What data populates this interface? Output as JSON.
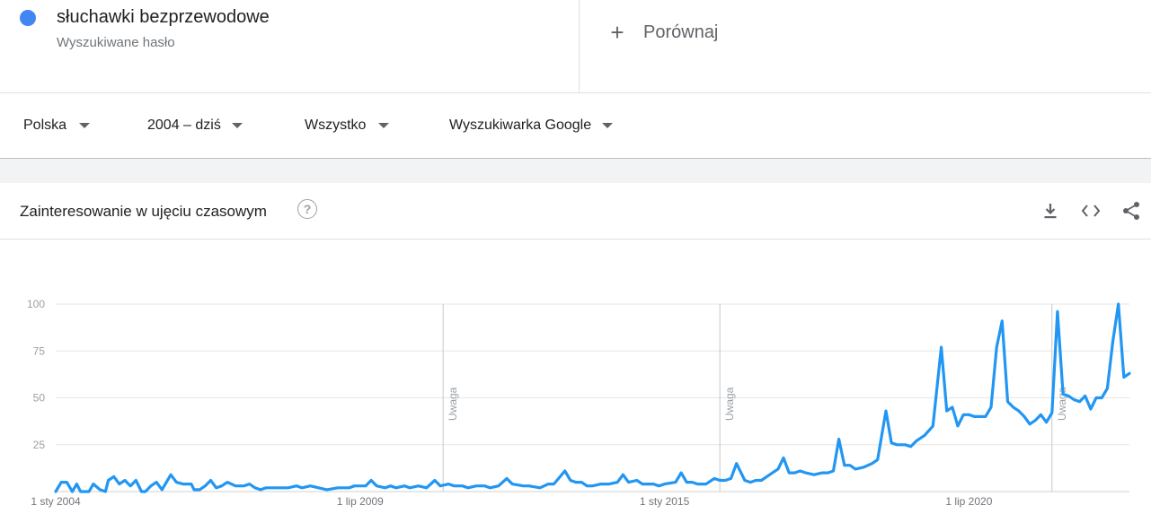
{
  "term": {
    "name": "słuchawki bezprzewodowe",
    "type": "Wyszukiwane hasło",
    "color": "#4285f4"
  },
  "compare": {
    "label": "Porównaj",
    "icon": "plus-icon"
  },
  "filters": [
    {
      "label": "Polska"
    },
    {
      "label": "2004 – dziś"
    },
    {
      "label": "Wszystko"
    },
    {
      "label": "Wyszukiwarka Google"
    }
  ],
  "card": {
    "title": "Zainteresowanie w ujęciu czasowym",
    "help_icon": "help-icon",
    "help_glyph": "?",
    "actions": [
      "download-icon",
      "embed-icon",
      "share-icon"
    ]
  },
  "chart_data": {
    "type": "line",
    "title": "",
    "xlabel": "",
    "ylabel": "",
    "ylim": [
      0,
      100
    ],
    "y_ticks": [
      100,
      75,
      50,
      25
    ],
    "x_ticks": [
      {
        "label": "1 sty 2004",
        "t": 2004.0
      },
      {
        "label": "1 lip 2009",
        "t": 2009.5
      },
      {
        "label": "1 sty 2015",
        "t": 2015.0
      },
      {
        "label": "1 lip 2020",
        "t": 2020.5
      }
    ],
    "xlim": [
      2004.0,
      2023.4
    ],
    "annotations": [
      {
        "label": "Uwaga",
        "t": 2011.0
      },
      {
        "label": "Uwaga",
        "t": 2016.0
      },
      {
        "label": "Uwaga",
        "t": 2022.0
      }
    ],
    "series": [
      {
        "color": "#2196f3",
        "points": [
          [
            2004.0,
            0
          ],
          [
            2004.1,
            5
          ],
          [
            2004.2,
            5
          ],
          [
            2004.3,
            0
          ],
          [
            2004.38,
            4
          ],
          [
            2004.45,
            0
          ],
          [
            2004.6,
            0
          ],
          [
            2004.68,
            4
          ],
          [
            2004.8,
            1
          ],
          [
            2004.9,
            0
          ],
          [
            2004.95,
            6
          ],
          [
            2005.05,
            8
          ],
          [
            2005.15,
            4
          ],
          [
            2005.25,
            6
          ],
          [
            2005.35,
            3
          ],
          [
            2005.45,
            6
          ],
          [
            2005.55,
            0
          ],
          [
            2005.62,
            0
          ],
          [
            2005.72,
            3
          ],
          [
            2005.82,
            5
          ],
          [
            2005.92,
            1
          ],
          [
            2006.0,
            5
          ],
          [
            2006.08,
            9
          ],
          [
            2006.18,
            5
          ],
          [
            2006.3,
            4
          ],
          [
            2006.45,
            4
          ],
          [
            2006.5,
            1
          ],
          [
            2006.6,
            1
          ],
          [
            2006.7,
            3
          ],
          [
            2006.8,
            6
          ],
          [
            2006.9,
            2
          ],
          [
            2007.0,
            3
          ],
          [
            2007.1,
            5
          ],
          [
            2007.25,
            3
          ],
          [
            2007.4,
            3
          ],
          [
            2007.5,
            4
          ],
          [
            2007.6,
            2
          ],
          [
            2007.7,
            1
          ],
          [
            2007.8,
            2
          ],
          [
            2008.0,
            2
          ],
          [
            2008.2,
            2
          ],
          [
            2008.35,
            3
          ],
          [
            2008.45,
            2
          ],
          [
            2008.6,
            3
          ],
          [
            2008.75,
            2
          ],
          [
            2008.9,
            1
          ],
          [
            2009.1,
            2
          ],
          [
            2009.3,
            2
          ],
          [
            2009.4,
            3
          ],
          [
            2009.6,
            3
          ],
          [
            2009.7,
            6
          ],
          [
            2009.8,
            3
          ],
          [
            2009.95,
            2
          ],
          [
            2010.05,
            3
          ],
          [
            2010.15,
            2
          ],
          [
            2010.3,
            3
          ],
          [
            2010.4,
            2
          ],
          [
            2010.55,
            3
          ],
          [
            2010.7,
            2
          ],
          [
            2010.85,
            6
          ],
          [
            2010.95,
            3
          ],
          [
            2011.1,
            4
          ],
          [
            2011.2,
            3
          ],
          [
            2011.35,
            3
          ],
          [
            2011.45,
            2
          ],
          [
            2011.6,
            3
          ],
          [
            2011.75,
            3
          ],
          [
            2011.85,
            2
          ],
          [
            2012.0,
            3
          ],
          [
            2012.15,
            7
          ],
          [
            2012.25,
            4
          ],
          [
            2012.45,
            3
          ],
          [
            2012.55,
            3
          ],
          [
            2012.75,
            2
          ],
          [
            2012.9,
            4
          ],
          [
            2013.0,
            4
          ],
          [
            2013.2,
            11
          ],
          [
            2013.3,
            6
          ],
          [
            2013.4,
            5
          ],
          [
            2013.5,
            5
          ],
          [
            2013.6,
            3
          ],
          [
            2013.7,
            3
          ],
          [
            2013.85,
            4
          ],
          [
            2014.0,
            4
          ],
          [
            2014.15,
            5
          ],
          [
            2014.25,
            9
          ],
          [
            2014.35,
            5
          ],
          [
            2014.5,
            6
          ],
          [
            2014.6,
            4
          ],
          [
            2014.8,
            4
          ],
          [
            2014.9,
            3
          ],
          [
            2015.0,
            4
          ],
          [
            2015.2,
            5
          ],
          [
            2015.3,
            10
          ],
          [
            2015.4,
            5
          ],
          [
            2015.5,
            5
          ],
          [
            2015.6,
            4
          ],
          [
            2015.75,
            4
          ],
          [
            2015.9,
            7
          ],
          [
            2016.0,
            6
          ],
          [
            2016.1,
            6
          ],
          [
            2016.2,
            7
          ],
          [
            2016.3,
            15
          ],
          [
            2016.45,
            6
          ],
          [
            2016.55,
            5
          ],
          [
            2016.65,
            6
          ],
          [
            2016.75,
            6
          ],
          [
            2016.85,
            8
          ],
          [
            2016.95,
            10
          ],
          [
            2017.05,
            12
          ],
          [
            2017.15,
            18
          ],
          [
            2017.25,
            10
          ],
          [
            2017.35,
            10
          ],
          [
            2017.45,
            11
          ],
          [
            2017.55,
            10
          ],
          [
            2017.7,
            9
          ],
          [
            2017.85,
            10
          ],
          [
            2017.95,
            10
          ],
          [
            2018.05,
            11
          ],
          [
            2018.15,
            28
          ],
          [
            2018.25,
            14
          ],
          [
            2018.35,
            14
          ],
          [
            2018.45,
            12
          ],
          [
            2018.6,
            13
          ],
          [
            2018.75,
            15
          ],
          [
            2018.85,
            17
          ],
          [
            2019.0,
            43
          ],
          [
            2019.1,
            26
          ],
          [
            2019.2,
            25
          ],
          [
            2019.35,
            25
          ],
          [
            2019.45,
            24
          ],
          [
            2019.55,
            27
          ],
          [
            2019.7,
            30
          ],
          [
            2019.85,
            35
          ],
          [
            2020.0,
            77
          ],
          [
            2020.1,
            43
          ],
          [
            2020.2,
            45
          ],
          [
            2020.3,
            35
          ],
          [
            2020.4,
            41
          ],
          [
            2020.5,
            41
          ],
          [
            2020.6,
            40
          ],
          [
            2020.7,
            40
          ],
          [
            2020.8,
            40
          ],
          [
            2020.9,
            45
          ],
          [
            2021.0,
            77
          ],
          [
            2021.1,
            91
          ],
          [
            2021.2,
            48
          ],
          [
            2021.3,
            45
          ],
          [
            2021.4,
            43
          ],
          [
            2021.5,
            40
          ],
          [
            2021.6,
            36
          ],
          [
            2021.7,
            38
          ],
          [
            2021.8,
            41
          ],
          [
            2021.9,
            37
          ],
          [
            2022.0,
            42
          ],
          [
            2022.1,
            96
          ],
          [
            2022.2,
            52
          ],
          [
            2022.3,
            51
          ],
          [
            2022.4,
            49
          ],
          [
            2022.5,
            48
          ],
          [
            2022.6,
            51
          ],
          [
            2022.7,
            44
          ],
          [
            2022.8,
            50
          ],
          [
            2022.9,
            50
          ],
          [
            2023.0,
            55
          ],
          [
            2023.1,
            80
          ],
          [
            2023.2,
            100
          ],
          [
            2023.3,
            61
          ],
          [
            2023.4,
            63
          ]
        ]
      }
    ]
  }
}
